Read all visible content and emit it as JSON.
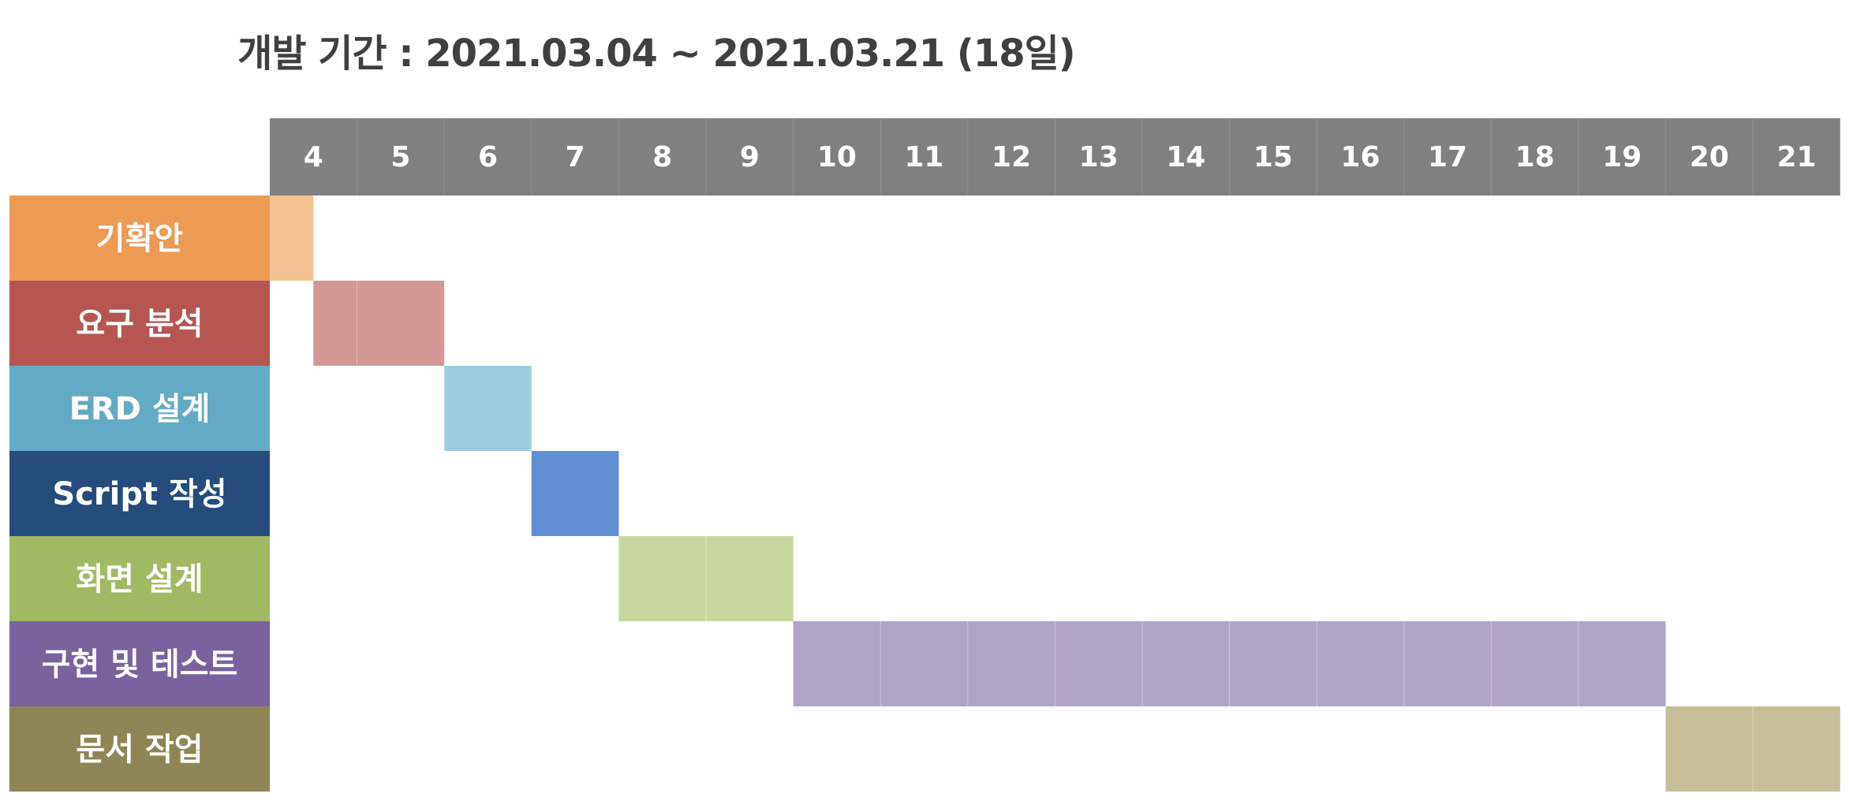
{
  "chart_data": {
    "type": "gantt",
    "title": "개발 기간 : 2021.03.04 ~ 2021.03.21 (18일)",
    "x": [
      "4",
      "5",
      "6",
      "7",
      "8",
      "9",
      "10",
      "11",
      "12",
      "13",
      "14",
      "15",
      "16",
      "17",
      "18",
      "19",
      "20",
      "21"
    ],
    "header_color": "#808080",
    "tasks": [
      {
        "name": "기확안",
        "start": 4,
        "end": 4.5,
        "color": "#ED9A55",
        "bar_color": "#F5C293"
      },
      {
        "name": "요구 분석",
        "start": 4.5,
        "end": 5,
        "color": "#B55652",
        "bar_color": "#D49796"
      },
      {
        "name": "ERD 설계",
        "start": 6,
        "end": 6,
        "color": "#63AAC6",
        "bar_color": "#A0CCDD"
      },
      {
        "name": "Script 작성",
        "start": 7,
        "end": 7,
        "color": "#264B7D",
        "bar_color": "#608FD3"
      },
      {
        "name": "화면 설계",
        "start": 8,
        "end": 9,
        "color": "#A2B964",
        "bar_color": "#C7D7A1"
      },
      {
        "name": "구현 및 테스트",
        "start": 10,
        "end": 19,
        "color": "#7A629F",
        "bar_color": "#B1A3C6"
      },
      {
        "name": "문서 작업",
        "start": 20,
        "end": 21,
        "color": "#8E8656",
        "bar_color": "#C6BE9A"
      }
    ]
  }
}
